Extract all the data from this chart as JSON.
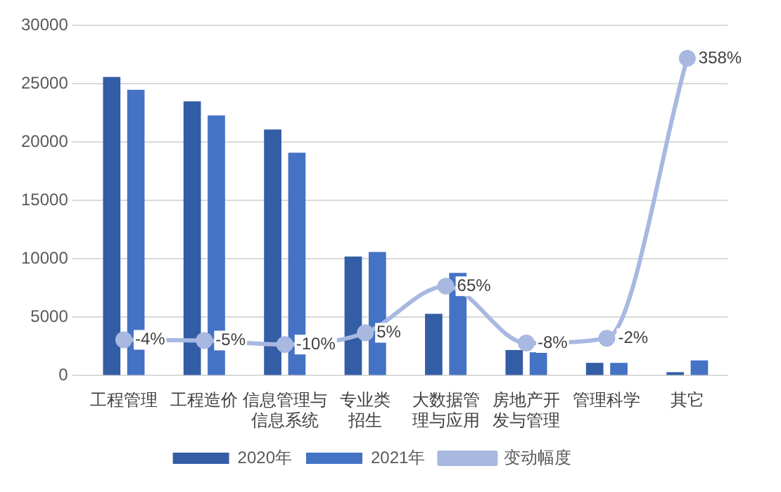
{
  "chart_data": {
    "type": "bar",
    "categories": [
      "工程管理",
      "工程造价",
      "信息管理与信息系统",
      "专业类招生",
      "大数据管理与应用",
      "房地产开发与管理",
      "管理科学",
      "其它"
    ],
    "series": [
      {
        "name": "2020年",
        "color": "#335da5",
        "values": [
          25600,
          23500,
          21100,
          10200,
          5300,
          2200,
          1100,
          300
        ]
      },
      {
        "name": "2021年",
        "color": "#4472c4",
        "values": [
          24500,
          22300,
          19100,
          10600,
          8800,
          2000,
          1100,
          1300
        ]
      },
      {
        "name": "变动幅度",
        "type": "line",
        "axis": "y2",
        "color": "#a9b8e0",
        "marker": "circle",
        "values": [
          -4,
          -5,
          -10,
          5,
          65,
          -8,
          -2,
          358
        ],
        "value_labels": [
          "-4%",
          "-5%",
          "-10%",
          "5%",
          "65%",
          "-8%",
          "-2%",
          "358%"
        ]
      }
    ],
    "ylim": [
      0,
      30000
    ],
    "yticks": [
      0,
      5000,
      10000,
      15000,
      20000,
      25000,
      30000
    ],
    "y2lim": [
      -50,
      400
    ],
    "grid": "y",
    "legend": "bottom"
  }
}
